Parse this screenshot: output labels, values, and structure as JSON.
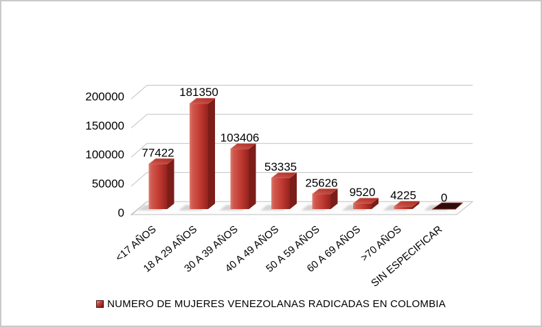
{
  "chart_data": {
    "type": "bar",
    "style": "3d-clustered-column",
    "title": "",
    "legend": "NUMERO DE MUJERES VENEZOLANAS RADICADAS EN COLOMBIA",
    "legend_position": "bottom",
    "categories": [
      "<17 AÑOS",
      "18 A 29 AÑOS",
      "30 A 39 AÑOS",
      "40 A 49 AÑOS",
      "50 A 59 AÑOS",
      "60 A 69 AÑOS",
      ">70 AÑOS",
      "SIN ESPECIFICAR"
    ],
    "values": [
      77422,
      181350,
      103406,
      53335,
      25626,
      9520,
      4225,
      0
    ],
    "data_labels": [
      "77422",
      "181350",
      "103406",
      "53335",
      "25626",
      "9520",
      "4225",
      "0"
    ],
    "y_ticks": [
      0,
      50000,
      100000,
      150000,
      200000
    ],
    "ylim": [
      0,
      200000
    ],
    "grid": true,
    "colors": {
      "bar_front": "#c23a32",
      "bar_front_light": "#e07a6f",
      "bar_front_dark": "#93221c",
      "bar_side": "#7b1d18",
      "bar_top": "#a82b24",
      "bar_top_light": "#d25b50",
      "zero_bar": "#2e0c09",
      "zero_bar_edge": "#7d221c",
      "gridline": "#c0c0c0",
      "floor": "#fcfcfc",
      "shadow": "#c6c6c6",
      "text": "#000000",
      "frame_border": "#c9c9c9"
    }
  }
}
